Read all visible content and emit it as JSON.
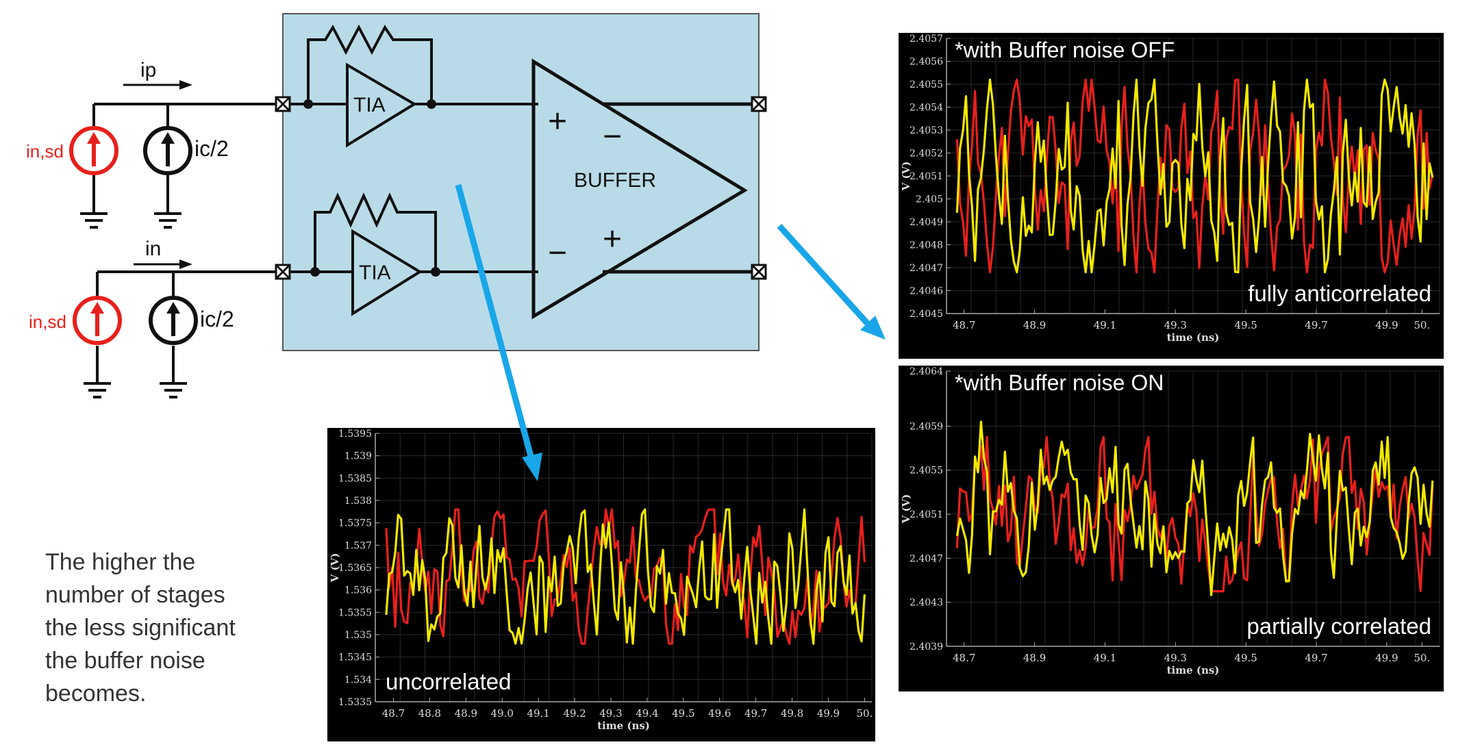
{
  "circuit": {
    "ip_label": "ip",
    "in_label": "in",
    "noise_source_label": "in,sd",
    "common_source_label": "ic/2",
    "tia_label": "TIA",
    "buffer_label": "BUFFER",
    "plus_sign": "+",
    "minus_sign": "−",
    "colors": {
      "noise_red": "#e8201c",
      "block_fill": "#b8dbe7",
      "wire": "#111111",
      "arrow_blue": "#19a6e8"
    }
  },
  "caption": {
    "lines": [
      "The higher the",
      "number of stages",
      "the less significant",
      "the buffer noise",
      "becomes."
    ]
  },
  "chart_data": [
    {
      "type": "line",
      "id": "buffer-off",
      "annotation_top": "*with Buffer noise OFF",
      "annotation_bottom": "fully anticorrelated",
      "ylabel": "V (V)",
      "xlabel": "time (ns)",
      "yticks": [
        "2.4057",
        "2.4056",
        "2.4055",
        "2.4054",
        "2.4053",
        "2.4052",
        "2.4051",
        "2.405",
        "2.4049",
        "2.4048",
        "2.4047",
        "2.4046",
        "2.4045"
      ],
      "xticks": [
        "48.7",
        "48.9",
        "49.1",
        "49.3",
        "49.5",
        "49.7",
        "49.9",
        "50."
      ],
      "xlim": [
        48.65,
        50.05
      ],
      "ylim": [
        2.4045,
        2.4057
      ],
      "series": [
        {
          "color": "#e8201c",
          "center": 2.4051,
          "amp": 0.00042,
          "seed": 11,
          "mode": "base"
        },
        {
          "color": "#f2e800",
          "center": 2.4051,
          "amp": 0.00042,
          "seed": 11,
          "mode": "mirror"
        }
      ]
    },
    {
      "type": "line",
      "id": "buffer-on",
      "annotation_top": "*with Buffer noise ON",
      "annotation_bottom": "partially correlated",
      "ylabel": "V (V)",
      "xlabel": "time (ns)",
      "yticks": [
        "2.4064",
        "2.4059",
        "2.4055",
        "2.4051",
        "2.4047",
        "2.4043",
        "2.4039"
      ],
      "xticks": [
        "48.7",
        "48.9",
        "49.1",
        "49.3",
        "49.5",
        "49.7",
        "49.9",
        "50."
      ],
      "xlim": [
        48.65,
        50.05
      ],
      "ylim": [
        2.4039,
        2.4064
      ],
      "series": [
        {
          "color": "#e8201c",
          "center": 2.4051,
          "amp": 0.0007,
          "seed": 23,
          "mode": "base"
        },
        {
          "color": "#f2e800",
          "center": 2.4051,
          "amp": 0.0007,
          "seed": 23,
          "mode": "partial"
        }
      ]
    },
    {
      "type": "line",
      "id": "uncorrelated",
      "annotation_top": "",
      "annotation_bottom": "uncorrelated",
      "ylabel": "V (V)",
      "xlabel": "time (ns)",
      "yticks": [
        "1.5395",
        "1.539",
        "1.5385",
        "1.538",
        "1.5375",
        "1.537",
        "1.5365",
        "1.536",
        "1.5355",
        "1.535",
        "1.5345",
        "1.534",
        "1.5335"
      ],
      "xticks": [
        "48.7",
        "48.8",
        "48.9",
        "49.0",
        "49.1",
        "49.2",
        "49.3",
        "49.4",
        "49.5",
        "49.6",
        "49.7",
        "49.8",
        "49.9",
        "50."
      ],
      "xlim": [
        48.65,
        50.02
      ],
      "ylim": [
        1.5335,
        1.5395
      ],
      "series": [
        {
          "color": "#e8201c",
          "center": 1.5363,
          "amp": 0.0015,
          "seed": 41,
          "mode": "base"
        },
        {
          "color": "#f2e800",
          "center": 1.5363,
          "amp": 0.0015,
          "seed": 97,
          "mode": "base"
        }
      ]
    }
  ]
}
